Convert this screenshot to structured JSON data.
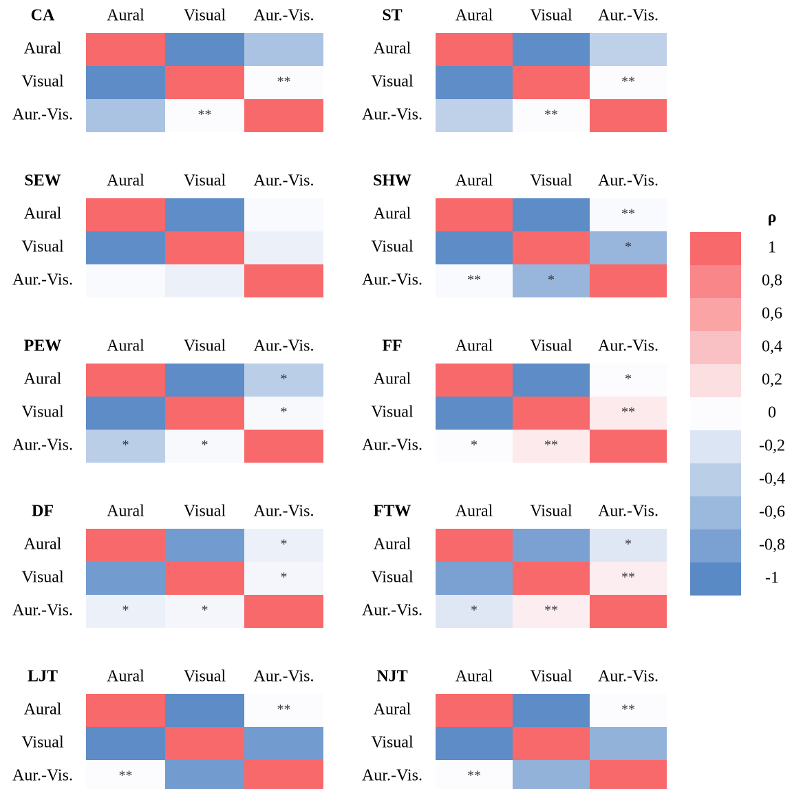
{
  "chart_data": {
    "type": "heatmap",
    "colors": {
      "low": "#5a8ac6",
      "mid": "#fcfcff",
      "high": "#f8696b"
    },
    "panels": [
      {
        "title": "CA",
        "columns": [
          "Aural",
          "Visual",
          "Aur.-Vis."
        ],
        "rows": [
          "Aural",
          "Visual",
          "Aur.-Vis."
        ],
        "values": [
          [
            1,
            -0.98,
            -0.5
          ],
          [
            -0.98,
            1,
            0
          ],
          [
            -0.5,
            0,
            1
          ]
        ],
        "stars": [
          [
            null,
            null,
            null
          ],
          [
            null,
            null,
            "**"
          ],
          [
            null,
            "**",
            null
          ]
        ]
      },
      {
        "title": "ST",
        "columns": [
          "Aural",
          "Visual",
          "Aur.-Vis."
        ],
        "rows": [
          "Aural",
          "Visual",
          "Aur.-Vis."
        ],
        "values": [
          [
            1,
            -0.97,
            -0.38
          ],
          [
            -0.97,
            1,
            0
          ],
          [
            -0.38,
            0,
            1
          ]
        ],
        "stars": [
          [
            null,
            null,
            null
          ],
          [
            null,
            null,
            "**"
          ],
          [
            null,
            "**",
            null
          ]
        ]
      },
      {
        "title": "SEW",
        "columns": [
          "Aural",
          "Visual",
          "Aur.-Vis."
        ],
        "rows": [
          "Aural",
          "Visual",
          "Aur.-Vis."
        ],
        "values": [
          [
            1,
            -0.97,
            -0.02
          ],
          [
            -0.97,
            1,
            -0.1
          ],
          [
            -0.02,
            -0.1,
            1
          ]
        ],
        "stars": [
          [
            null,
            null,
            null
          ],
          [
            null,
            null,
            null
          ],
          [
            null,
            null,
            null
          ]
        ]
      },
      {
        "title": "SHW",
        "columns": [
          "Aural",
          "Visual",
          "Aur.-Vis."
        ],
        "rows": [
          "Aural",
          "Visual",
          "Aur.-Vis."
        ],
        "values": [
          [
            1,
            -0.98,
            -0.02
          ],
          [
            -0.98,
            1,
            -0.62
          ],
          [
            -0.02,
            -0.62,
            1
          ]
        ],
        "stars": [
          [
            null,
            null,
            "**"
          ],
          [
            null,
            null,
            "*"
          ],
          [
            "**",
            "*",
            null
          ]
        ]
      },
      {
        "title": "PEW",
        "columns": [
          "Aural",
          "Visual",
          "Aur.-Vis."
        ],
        "rows": [
          "Aural",
          "Visual",
          "Aur.-Vis."
        ],
        "values": [
          [
            1,
            -0.98,
            -0.4
          ],
          [
            -0.98,
            1,
            -0.03
          ],
          [
            -0.4,
            -0.03,
            1
          ]
        ],
        "stars": [
          [
            null,
            null,
            "*"
          ],
          [
            null,
            null,
            "*"
          ],
          [
            "*",
            "*",
            null
          ]
        ]
      },
      {
        "title": "FF",
        "columns": [
          "Aural",
          "Visual",
          "Aur.-Vis."
        ],
        "rows": [
          "Aural",
          "Visual",
          "Aur.-Vis."
        ],
        "values": [
          [
            1,
            -0.98,
            0
          ],
          [
            -0.98,
            1,
            0.12
          ],
          [
            0,
            0.12,
            1
          ]
        ],
        "stars": [
          [
            null,
            null,
            "*"
          ],
          [
            null,
            null,
            "**"
          ],
          [
            "*",
            "**",
            null
          ]
        ]
      },
      {
        "title": "DF",
        "columns": [
          "Aural",
          "Visual",
          "Aur.-Vis."
        ],
        "rows": [
          "Aural",
          "Visual",
          "Aur.-Vis."
        ],
        "values": [
          [
            1,
            -0.85,
            -0.1
          ],
          [
            -0.85,
            1,
            -0.05
          ],
          [
            -0.1,
            -0.05,
            1
          ]
        ],
        "stars": [
          [
            null,
            null,
            "*"
          ],
          [
            null,
            null,
            "*"
          ],
          [
            "*",
            "*",
            null
          ]
        ]
      },
      {
        "title": "FTW",
        "columns": [
          "Aural",
          "Visual",
          "Aur.-Vis."
        ],
        "rows": [
          "Aural",
          "Visual",
          "Aur.-Vis."
        ],
        "values": [
          [
            1,
            -0.8,
            -0.18
          ],
          [
            -0.8,
            1,
            0.1
          ],
          [
            -0.18,
            0.1,
            1
          ]
        ],
        "stars": [
          [
            null,
            null,
            "*"
          ],
          [
            null,
            null,
            "**"
          ],
          [
            "*",
            "**",
            null
          ]
        ]
      },
      {
        "title": "LJT",
        "columns": [
          "Aural",
          "Visual",
          "Aur.-Vis."
        ],
        "rows": [
          "Aural",
          "Visual",
          "Aur.-Vis."
        ],
        "values": [
          [
            1,
            -0.98,
            0
          ],
          [
            -0.98,
            1,
            -0.85
          ],
          [
            0,
            -0.85,
            1
          ]
        ],
        "stars": [
          [
            null,
            null,
            "**"
          ],
          [
            null,
            null,
            null
          ],
          [
            "**",
            null,
            null
          ]
        ]
      },
      {
        "title": "NJT",
        "columns": [
          "Aural",
          "Visual",
          "Aur.-Vis."
        ],
        "rows": [
          "Aural",
          "Visual",
          "Aur.-Vis."
        ],
        "values": [
          [
            1,
            -0.98,
            0
          ],
          [
            -0.98,
            1,
            -0.65
          ],
          [
            0,
            -0.65,
            1
          ]
        ],
        "stars": [
          [
            null,
            null,
            "**"
          ],
          [
            null,
            null,
            null
          ],
          [
            "**",
            null,
            null
          ]
        ]
      }
    ],
    "legend": {
      "title": "ρ",
      "ticks": [
        1,
        {
          "value": 0.8,
          "label": "0,8"
        },
        {
          "value": 0.6,
          "label": "0,6"
        },
        {
          "value": 0.4,
          "label": "0,4"
        },
        {
          "value": 0.2,
          "label": "0,2"
        },
        0,
        {
          "value": -0.2,
          "label": "-0,2"
        },
        {
          "value": -0.4,
          "label": "-0,4"
        },
        {
          "value": -0.6,
          "label": "-0,6"
        },
        {
          "value": -0.8,
          "label": "-0,8"
        },
        -1
      ]
    }
  }
}
